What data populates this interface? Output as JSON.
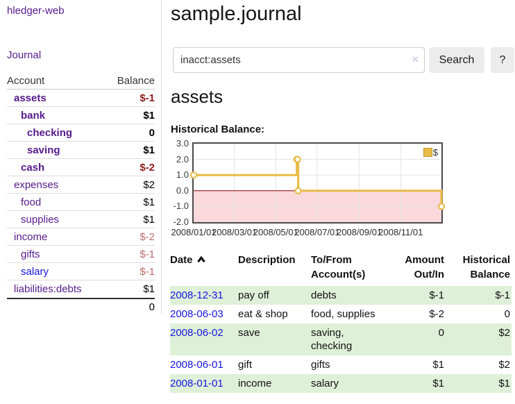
{
  "app_title": "hledger-web",
  "sidebar": {
    "journal_link": "Journal",
    "table": {
      "header_account": "Account",
      "header_balance": "Balance",
      "rows": [
        {
          "name": "assets",
          "balance": "$-1"
        },
        {
          "name": "bank",
          "balance": "$1"
        },
        {
          "name": "checking",
          "balance": "0"
        },
        {
          "name": "saving",
          "balance": "$1"
        },
        {
          "name": "cash",
          "balance": "$-2"
        },
        {
          "name": "expenses",
          "balance": "$2"
        },
        {
          "name": "food",
          "balance": "$1"
        },
        {
          "name": "supplies",
          "balance": "$1"
        },
        {
          "name": "income",
          "balance": "$-2"
        },
        {
          "name": "gifts",
          "balance": "$-1"
        },
        {
          "name": "salary",
          "balance": "$-1"
        },
        {
          "name": "liabilities:debts",
          "balance": "$1"
        }
      ],
      "total": "0"
    }
  },
  "main": {
    "title": "sample.journal",
    "search": {
      "value": "inacct:assets",
      "clear_label": "×",
      "search_button": "Search",
      "help_button": "?"
    },
    "account_heading": "assets",
    "chart_title": "Historical Balance:",
    "register": {
      "headers": {
        "date": "Date",
        "description": "Description",
        "accounts": "To/From\nAccount(s)",
        "amount": "Amount\nOut/In",
        "balance": "Historical\nBalance"
      },
      "rows": [
        {
          "date": "2008-12-31",
          "description": "pay off",
          "accounts": "debts",
          "amount": "$-1",
          "balance": "$-1"
        },
        {
          "date": "2008-06-03",
          "description": "eat & shop",
          "accounts": "food, supplies",
          "amount": "$-2",
          "balance": "0"
        },
        {
          "date": "2008-06-02",
          "description": "save",
          "accounts": "saving,\nchecking",
          "amount": "0",
          "balance": "$2"
        },
        {
          "date": "2008-06-01",
          "description": "gift",
          "accounts": "gifts",
          "amount": "$1",
          "balance": "$2"
        },
        {
          "date": "2008-01-01",
          "description": "income",
          "accounts": "salary",
          "amount": "$1",
          "balance": "$1"
        }
      ]
    }
  },
  "icons": {
    "date_sort": "chevron-up-icon",
    "search_clear": "x-icon"
  },
  "colors": {
    "link_purple": "#551a8b",
    "link_blue": "#1515e0",
    "negative_strong": "#8f1d1d",
    "negative_mild": "#b96b6b",
    "register_negative": "#9d2222",
    "row_stripe_green": "#dff0d8",
    "button_gray": "#ececec"
  },
  "chart_data": {
    "type": "line",
    "step": true,
    "title": "Historical Balance:",
    "x_range": [
      "2008-01-01",
      "2008-12-31"
    ],
    "ylim": [
      -2,
      3
    ],
    "y_ticks": [
      "3.0",
      "2.0",
      "1.0",
      "0.0",
      "-1.0",
      "-2.0"
    ],
    "x_ticks": [
      {
        "date": "2008-01-01",
        "label": "2008/01/01"
      },
      {
        "date": "2008-03-01",
        "label": "2008/03/01"
      },
      {
        "date": "2008-05-01",
        "label": "2008/05/01"
      },
      {
        "date": "2008-07-01",
        "label": "2008/07/01"
      },
      {
        "date": "2008-09-01",
        "label": "2008/09/01"
      },
      {
        "date": "2008-11-01",
        "label": "2008/11/01"
      }
    ],
    "series": [
      {
        "name": "$",
        "color": "#e8bc4a",
        "points": [
          [
            "2008-01-01",
            1
          ],
          [
            "2008-06-01",
            2
          ],
          [
            "2008-06-02",
            2
          ],
          [
            "2008-06-03",
            0
          ],
          [
            "2008-12-31",
            -1
          ]
        ]
      }
    ],
    "negative_region_color": "#f9d9db",
    "zero_line_color": "#8b0000",
    "grid": true,
    "legend_position": "top-right"
  }
}
